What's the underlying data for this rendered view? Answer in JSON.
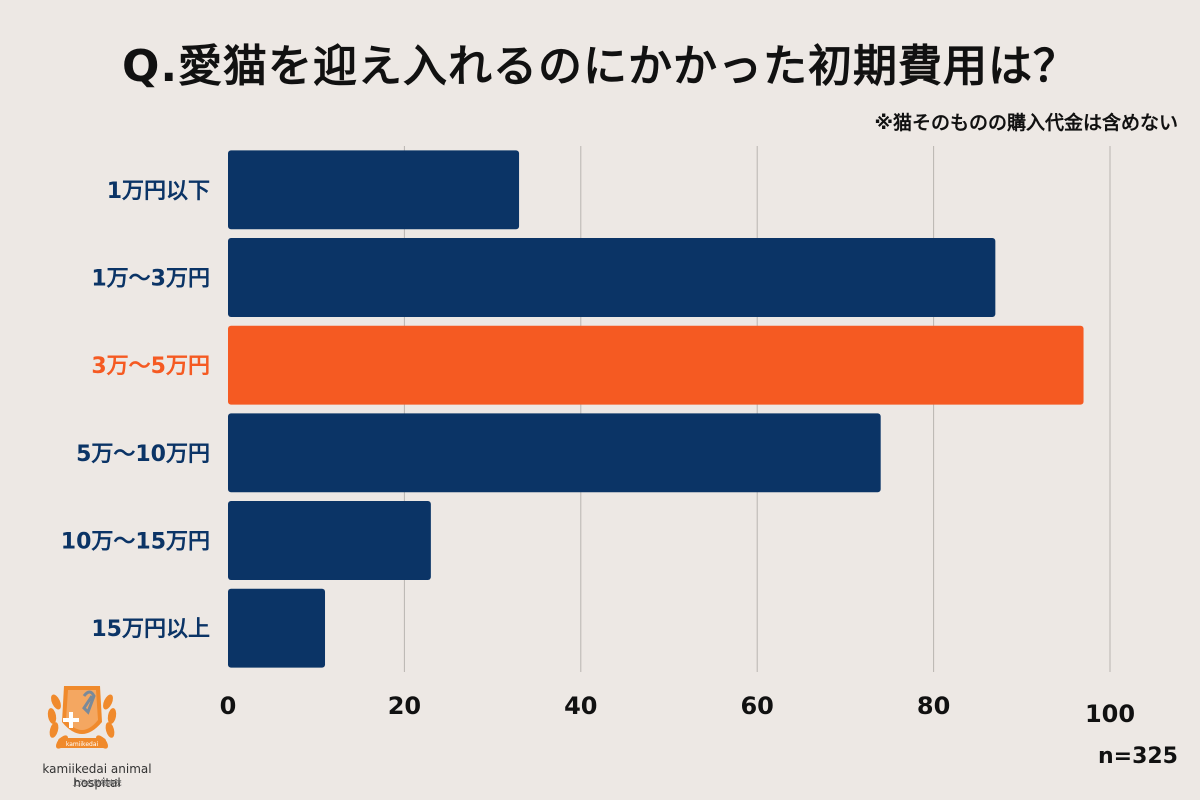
{
  "title": "Q.愛猫を迎え入れるのにかかった初期費用は？",
  "note": "※猫そのものの購入代金は含めない",
  "sample_size": "n=325",
  "logo": {
    "name": "kamiikedai animal hospital",
    "subtitle": "上池台動物病院",
    "badge": "kamiikedai"
  },
  "colors": {
    "bar": "#0b3466",
    "highlight": "#f55a22",
    "label": "#0b3466",
    "grid": "#b9b4b0",
    "logo": "#f08a2c"
  },
  "chart_data": {
    "type": "bar",
    "orientation": "horizontal",
    "categories": [
      "1万円以下",
      "1万〜3万円",
      "3万〜5万円",
      "5万〜10万円",
      "10万〜15万円",
      "15万円以上"
    ],
    "values": [
      33,
      87,
      97,
      74,
      23,
      11
    ],
    "highlight_index": 2,
    "xlim": [
      0,
      100
    ],
    "xticks": [
      "0",
      "20",
      "40",
      "60",
      "80",
      "100"
    ],
    "grid": true
  }
}
